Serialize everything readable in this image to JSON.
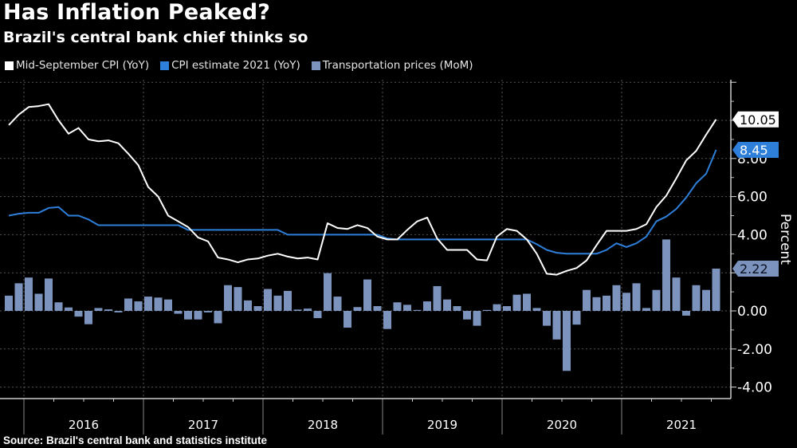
{
  "chart_data": {
    "type": "line+bar",
    "title": "Has Inflation Peaked?",
    "subtitle": "Brazil's central bank chief thinks so",
    "source": "Source: Brazil's central bank and statistics institute",
    "ylabel": "Percent",
    "xlabel": "",
    "ylim": [
      -4.5,
      12.5
    ],
    "yticks": [
      "-4.00",
      "-2.00",
      "0.00",
      "2.00",
      "4.00",
      "6.00",
      "8.00",
      "10.00",
      "12.00"
    ],
    "ytick_values": [
      -4,
      -2,
      0,
      2,
      4,
      6,
      8,
      10,
      12
    ],
    "visible_ytick_labels": [
      "-4.00",
      "-2.00",
      "0.00",
      "4.00",
      "6.00",
      "8.00"
    ],
    "x_start": "2015-11",
    "x_end": "2021-10",
    "xtick_labels": [
      "2016",
      "2017",
      "2018",
      "2019",
      "2020",
      "2021"
    ],
    "grid": true,
    "legend_position": "top-left",
    "series": [
      {
        "name": "Mid-September CPI (YoY)",
        "type": "line",
        "color": "#ffffff",
        "last_value_label": "10.05",
        "values": [
          9.75,
          10.3,
          10.7,
          10.75,
          10.85,
          10.0,
          9.3,
          9.6,
          9.0,
          8.9,
          8.95,
          8.8,
          8.25,
          7.65,
          6.5,
          6.0,
          5.0,
          4.7,
          4.4,
          3.85,
          3.65,
          2.8,
          2.7,
          2.55,
          2.7,
          2.75,
          2.9,
          3.0,
          2.85,
          2.75,
          2.8,
          2.7,
          4.6,
          4.35,
          4.3,
          4.5,
          4.35,
          3.9,
          3.75,
          3.75,
          4.25,
          4.7,
          4.9,
          3.8,
          3.2,
          3.2,
          3.2,
          2.7,
          2.65,
          3.9,
          4.3,
          4.2,
          3.75,
          3.0,
          1.95,
          1.9,
          2.1,
          2.25,
          2.65,
          3.45,
          4.2,
          4.2,
          4.2,
          4.3,
          4.55,
          5.45,
          6.05,
          6.95,
          7.9,
          8.4,
          9.25,
          10.05
        ]
      },
      {
        "name": "CPI estimate 2021 (YoY)",
        "type": "line",
        "color": "#2e7fd9",
        "last_value_label": "8.45",
        "values": [
          5.0,
          5.1,
          5.15,
          5.15,
          5.4,
          5.45,
          5.0,
          5.0,
          4.8,
          4.5,
          4.5,
          4.5,
          4.5,
          4.5,
          4.5,
          4.5,
          4.5,
          4.5,
          4.25,
          4.25,
          4.25,
          4.25,
          4.25,
          4.25,
          4.25,
          4.25,
          4.25,
          4.25,
          4.0,
          4.0,
          4.0,
          4.0,
          4.0,
          4.0,
          4.0,
          4.0,
          4.0,
          4.0,
          3.8,
          3.75,
          3.75,
          3.75,
          3.75,
          3.75,
          3.75,
          3.75,
          3.75,
          3.75,
          3.75,
          3.75,
          3.75,
          3.75,
          3.75,
          3.5,
          3.2,
          3.05,
          3.0,
          3.0,
          3.0,
          3.0,
          3.2,
          3.55,
          3.35,
          3.55,
          3.9,
          4.7,
          4.95,
          5.35,
          5.95,
          6.7,
          7.2,
          8.45
        ]
      },
      {
        "name": "Transportation prices (MoM)",
        "type": "bar",
        "color": "#7b93bd",
        "last_value_label": "2.22",
        "values": [
          0.8,
          1.45,
          1.75,
          0.9,
          1.7,
          0.45,
          0.18,
          -0.3,
          -0.7,
          0.15,
          0.08,
          -0.08,
          0.65,
          0.5,
          0.75,
          0.7,
          0.6,
          -0.15,
          -0.45,
          -0.45,
          -0.08,
          -0.65,
          1.35,
          1.25,
          0.55,
          0.25,
          1.15,
          0.8,
          1.05,
          0.07,
          0.12,
          -0.38,
          1.98,
          0.75,
          -0.88,
          0.2,
          1.65,
          0.25,
          -0.95,
          0.45,
          0.32,
          0.05,
          0.5,
          1.3,
          0.6,
          0.25,
          -0.45,
          -0.78,
          0.05,
          0.35,
          0.25,
          0.85,
          0.9,
          0.15,
          -0.78,
          -1.5,
          -3.15,
          -0.72,
          1.1,
          0.72,
          0.8,
          1.35,
          0.95,
          1.45,
          0.15,
          1.1,
          3.75,
          1.75,
          -0.25,
          1.35,
          1.1,
          2.22
        ]
      }
    ]
  }
}
